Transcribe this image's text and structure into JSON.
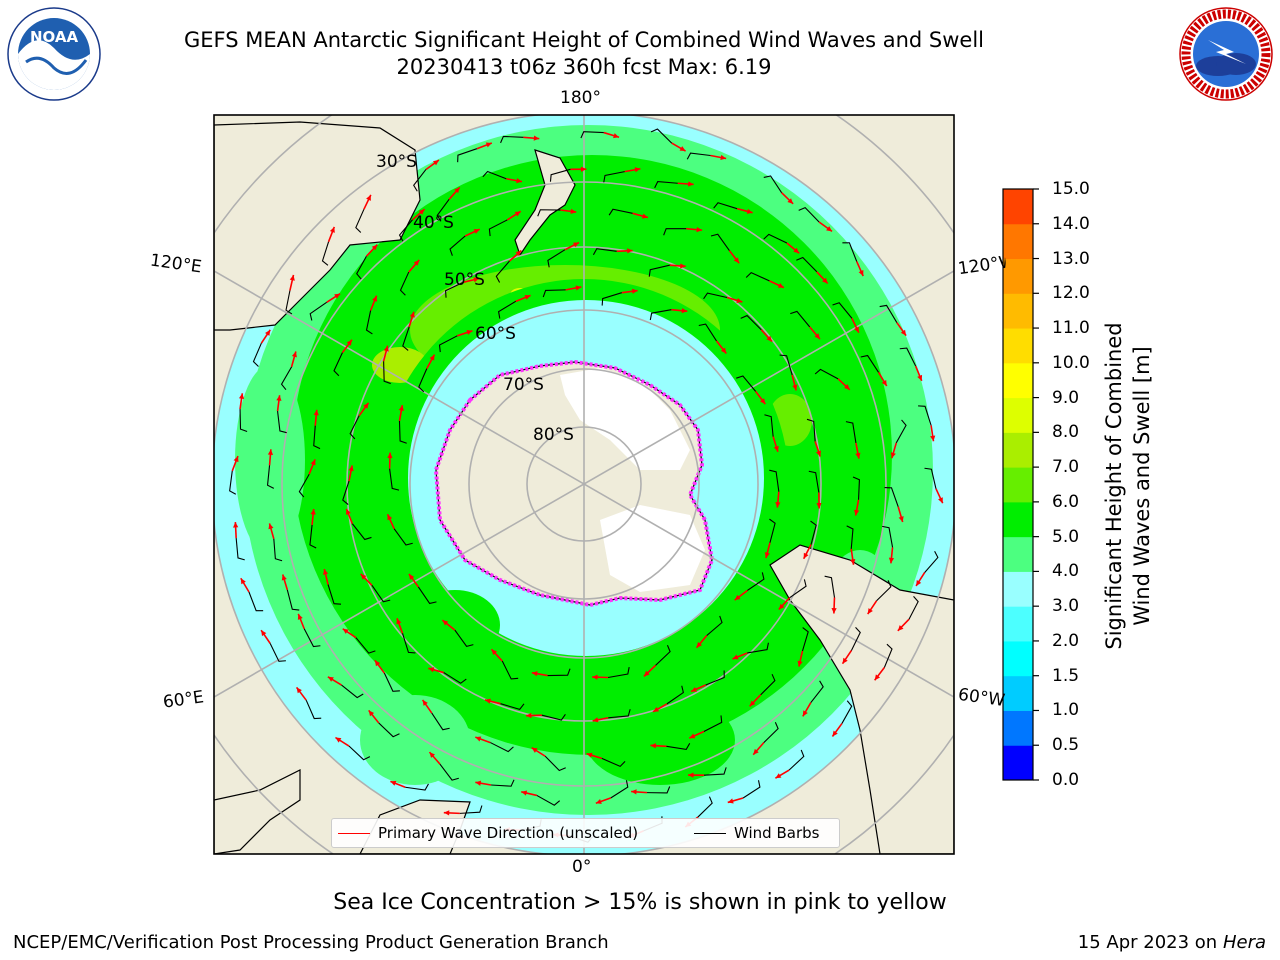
{
  "title": {
    "line1": "GEFS MEAN Antarctic Significant Height of Combined Wind Waves and Swell",
    "line2": "20230413 t06z 360h fcst   Max: 6.19"
  },
  "map": {
    "projection": "south-polar-stereographic",
    "longitude_labels": [
      "180°",
      "120°E",
      "120°W",
      "60°E",
      "60°W",
      "0°"
    ],
    "latitude_labels": [
      "30°S",
      "40°S",
      "50°S",
      "60°S",
      "70°S",
      "80°S"
    ],
    "land_color": "#efecda",
    "ice_colors": [
      "#ff33ff",
      "#ff66cc",
      "#ffcc00"
    ]
  },
  "legend": {
    "primary_wave_label": "Primary Wave Direction (unscaled)",
    "primary_wave_color": "#ff0000",
    "wind_barbs_label": "Wind Barbs",
    "wind_barbs_color": "#000000"
  },
  "colorbar": {
    "label_line1": "Significant Height of Combined",
    "label_line2": "Wind Waves and Swell [m]",
    "ticks": [
      "0.0",
      "0.5",
      "1.0",
      "1.5",
      "2.0",
      "3.0",
      "4.0",
      "5.0",
      "6.0",
      "7.0",
      "8.0",
      "9.0",
      "10.0",
      "11.0",
      "12.0",
      "13.0",
      "14.0",
      "15.0"
    ],
    "colors": [
      "#0000ff",
      "#0077ff",
      "#00ccff",
      "#00ffff",
      "#4cffff",
      "#99ffff",
      "#4cff80",
      "#00ee00",
      "#66ee00",
      "#aaee00",
      "#ddff00",
      "#ffff00",
      "#ffdd00",
      "#ffbb00",
      "#ff9900",
      "#ff7700",
      "#ff4400",
      "#ff0000"
    ]
  },
  "chart_data": {
    "type": "heatmap",
    "field": "Significant Height of Combined Wind Waves and Swell",
    "units": "m",
    "max_value": 6.19,
    "bands_by_latitude": [
      {
        "lat": "30°S",
        "hs_m": 2.5
      },
      {
        "lat": "40°S",
        "hs_m": 3.5
      },
      {
        "lat": "50°S",
        "hs_m": 4.5
      },
      {
        "lat": "60°S",
        "hs_m": 5.0
      },
      {
        "lat": "70°S",
        "hs_m": 2.5
      }
    ]
  },
  "ice_note": "Sea Ice Concentration > 15% is shown in pink to yellow",
  "footer": {
    "left": "NCEP/EMC/Verification Post Processing Product Generation Branch",
    "right_date": "15 Apr 2023 on",
    "right_host": "Hera"
  },
  "logos": {
    "noaa_text": "NOAA",
    "noaa_ring_text": "NATIONAL OCEANIC AND ATMOSPHERIC ADMINISTRATION · U.S. DEPARTMENT OF COMMERCE",
    "nws_ring_text": "NATIONAL WEATHER SERVICE"
  }
}
